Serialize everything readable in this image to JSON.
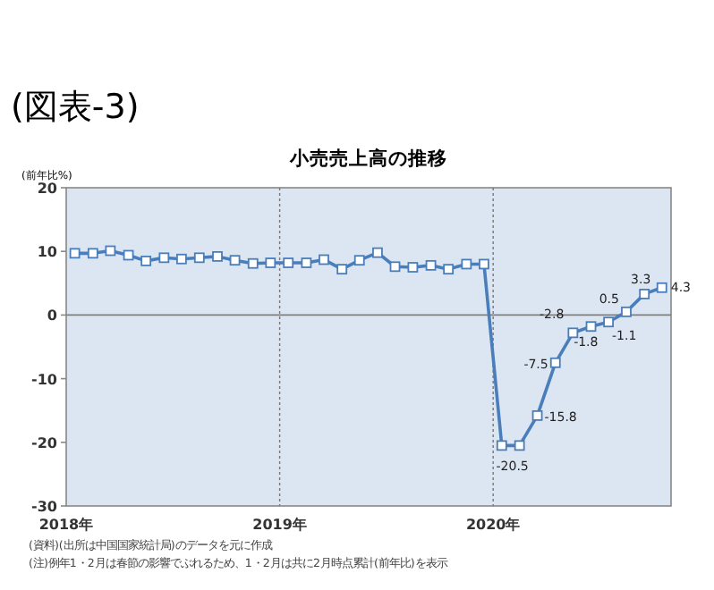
{
  "chart_data": {
    "type": "line",
    "title": "(図表-3)",
    "subtitle": "小売売上高の推移",
    "ylabel": "(前年比%)",
    "x": [
      "2018-01-16",
      "2018-02-15",
      "2018-03-16",
      "2018-04-16",
      "2018-05-16",
      "2018-06-16",
      "2018-07-16",
      "2018-08-16",
      "2018-09-16",
      "2018-10-16",
      "2018-11-16",
      "2018-12-16",
      "2019-01-16",
      "2019-02-15",
      "2019-03-16",
      "2019-04-16",
      "2019-05-16",
      "2019-06-16",
      "2019-07-16",
      "2019-08-16",
      "2019-09-16",
      "2019-10-16",
      "2019-11-16",
      "2019-12-16",
      "2020-01-16",
      "2020-02-15",
      "2020-03-16",
      "2020-04-16",
      "2020-05-16",
      "2020-06-16",
      "2020-07-16",
      "2020-08-16",
      "2020-09-16",
      "2020-10-16"
    ],
    "series": [
      {
        "color": "#4a7ebb",
        "values": [
          9.7,
          9.7,
          10.1,
          9.4,
          8.5,
          9.0,
          8.8,
          9.0,
          9.2,
          8.6,
          8.1,
          8.2,
          8.2,
          8.2,
          8.7,
          7.2,
          8.6,
          9.8,
          7.6,
          7.5,
          7.8,
          7.2,
          8.0,
          8.0,
          -20.5,
          -20.5,
          -15.8,
          -7.5,
          -2.8,
          -1.8,
          -1.1,
          0.5,
          3.3,
          4.3
        ],
        "value_labels": [
          null,
          null,
          null,
          null,
          null,
          null,
          null,
          null,
          null,
          null,
          null,
          null,
          null,
          null,
          null,
          null,
          null,
          null,
          null,
          null,
          null,
          null,
          null,
          null,
          null,
          "-20.5",
          "-15.8",
          "-7.5",
          "-2.8",
          "-1.8",
          "-1.1",
          "0.5",
          "3.3",
          "4.3"
        ]
      }
    ],
    "xlim": [
      "2018-01",
      "2020-11"
    ],
    "xticks": [
      {
        "value": "2018-01",
        "label": "2018年"
      },
      {
        "value": "2019-01",
        "label": "2019年"
      },
      {
        "value": "2020-01",
        "label": "2020年"
      }
    ],
    "ylim": [
      -30,
      20
    ],
    "yticks": [
      -30,
      -20,
      -10,
      0,
      10,
      20
    ],
    "grid": "x",
    "marker": "square",
    "line_style": "solid",
    "ref_lines": [
      {
        "axis": "y",
        "value": 0,
        "color": "#7f7f7f"
      }
    ],
    "annotations": [
      "(資料)(出所は中国国家統計局)のデータを元に作成",
      "(注)例年1・2月は春節の影響でぶれるため、1・2月は共に2月時点累計(前年比)を表示"
    ]
  }
}
